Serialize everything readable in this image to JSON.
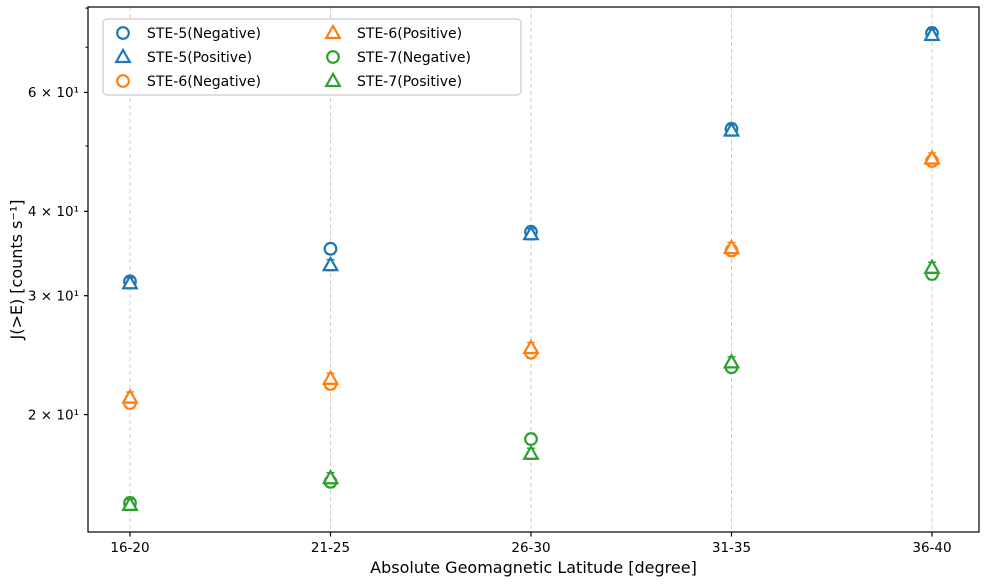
{
  "figure": {
    "background": "#ffffff",
    "axis_color": "#000000",
    "grid_color": "#cccccc",
    "xlabel": "Absolute Geomagnetic Latitude [degree]",
    "ylabel": "J(>E) [counts s⁻¹]"
  },
  "chart_data": {
    "type": "scatter",
    "title": "",
    "xlabel": "Absolute Geomagnetic Latitude [degree]",
    "ylabel": "J(>E) [counts s⁻¹]",
    "yscale": "log",
    "ylim": [
      13.4,
      80.3
    ],
    "grid": "vertical-dashed",
    "legend_position": "upper-left",
    "legend_columns": 2,
    "categories": [
      "16-20",
      "21-25",
      "26-30",
      "31-35",
      "36-40"
    ],
    "y_ticks": [
      {
        "value": 20,
        "label": "2 × 10¹"
      },
      {
        "value": 30,
        "label": "3 × 10¹"
      },
      {
        "value": 40,
        "label": "4 × 10¹"
      },
      {
        "value": 60,
        "label": "6 × 10¹"
      }
    ],
    "y_minor_ticks": [
      50,
      70,
      80
    ],
    "series": [
      {
        "name": "STE-5(Negative)",
        "marker": "circle",
        "color": "#1f77b4",
        "values": [
          31.5,
          35.2,
          37.3,
          53.0,
          73.5
        ]
      },
      {
        "name": "STE-5(Positive)",
        "marker": "triangle",
        "color": "#1f77b4",
        "values": [
          31.3,
          33.3,
          37.0,
          52.7,
          73.0
        ]
      },
      {
        "name": "STE-6(Negative)",
        "marker": "circle",
        "color": "#ff7f0e",
        "values": [
          20.8,
          22.2,
          24.7,
          35.0,
          47.5
        ]
      },
      {
        "name": "STE-6(Positive)",
        "marker": "triangle",
        "color": "#ff7f0e",
        "values": [
          21.2,
          22.6,
          25.1,
          35.3,
          47.9
        ]
      },
      {
        "name": "STE-7(Negative)",
        "marker": "circle",
        "color": "#2ca02c",
        "values": [
          14.8,
          15.9,
          18.4,
          23.5,
          32.3
        ]
      },
      {
        "name": "STE-7(Positive)",
        "marker": "triangle",
        "color": "#2ca02c",
        "values": [
          14.7,
          16.1,
          17.5,
          23.9,
          33.0
        ]
      }
    ]
  }
}
